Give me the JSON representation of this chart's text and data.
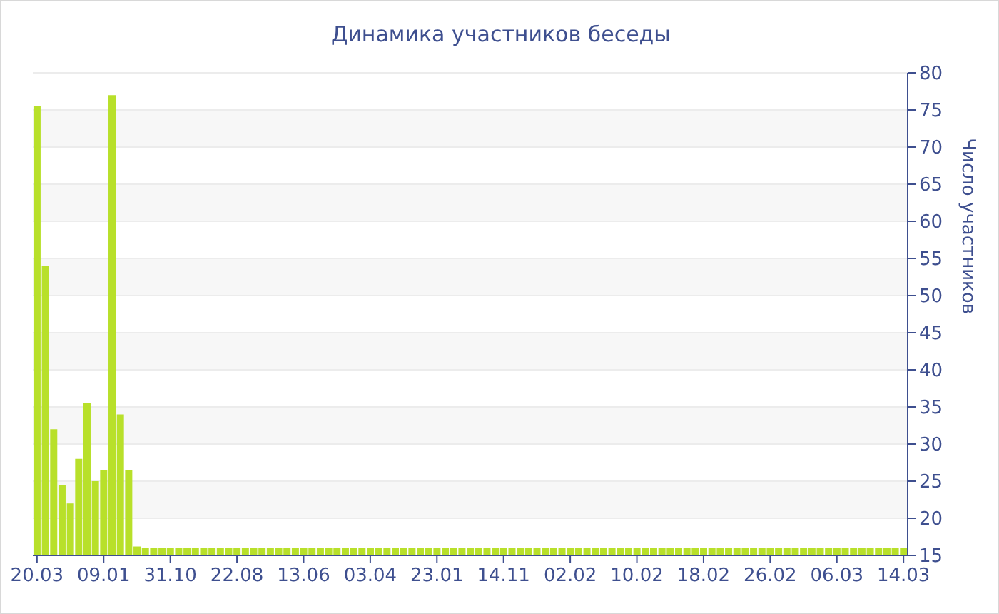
{
  "chart_data": {
    "type": "bar",
    "title": "Динамика участников беседы",
    "ylabel": "Число участников",
    "color": "#b8e02a",
    "grid": "y",
    "categories": [
      "20.03",
      null,
      null,
      null,
      null,
      null,
      null,
      null,
      "09.01",
      null,
      null,
      null,
      null,
      null,
      null,
      null,
      "31.10",
      null,
      null,
      null,
      null,
      null,
      null,
      null,
      "22.08",
      null,
      null,
      null,
      null,
      null,
      null,
      null,
      "13.06",
      null,
      null,
      null,
      null,
      null,
      null,
      null,
      "03.04",
      null,
      null,
      null,
      null,
      null,
      null,
      null,
      "23.01",
      null,
      null,
      null,
      null,
      null,
      null,
      null,
      "14.11",
      null,
      null,
      null,
      null,
      null,
      null,
      null,
      "02.02",
      null,
      null,
      null,
      null,
      null,
      null,
      null,
      "10.02",
      null,
      null,
      null,
      null,
      null,
      null,
      null,
      "18.02",
      null,
      null,
      null,
      null,
      null,
      null,
      null,
      "26.02",
      null,
      null,
      null,
      null,
      null,
      null,
      null,
      "06.03",
      null,
      null,
      null,
      null,
      null,
      null,
      null,
      "14.03"
    ],
    "values": [
      75.5,
      54,
      32,
      24.5,
      22,
      28,
      35.5,
      25,
      26.5,
      77,
      34,
      26.5,
      16.2,
      16,
      16,
      16,
      16,
      16,
      16,
      16,
      16,
      16,
      16,
      16,
      16,
      16,
      16,
      16,
      16,
      16,
      16,
      16,
      16,
      16,
      16,
      16,
      16,
      16,
      16,
      16,
      16,
      16,
      16,
      16,
      16,
      16,
      16,
      16,
      16,
      16,
      16,
      16,
      16,
      16,
      16,
      16,
      16,
      16,
      16,
      16,
      16,
      16,
      16,
      16,
      16,
      16,
      16,
      16,
      16,
      16,
      16,
      16,
      16,
      16,
      16,
      16,
      16,
      16,
      16,
      16,
      16,
      16,
      16,
      16,
      16,
      16,
      16,
      16,
      16,
      16,
      16,
      16,
      16,
      16,
      16,
      16,
      16,
      16,
      16,
      16,
      16,
      16,
      16,
      16,
      16
    ],
    "ylim": [
      15,
      80
    ],
    "yticks": [
      15,
      20,
      25,
      30,
      35,
      40,
      45,
      50,
      55,
      60,
      65,
      70,
      75,
      80
    ]
  }
}
